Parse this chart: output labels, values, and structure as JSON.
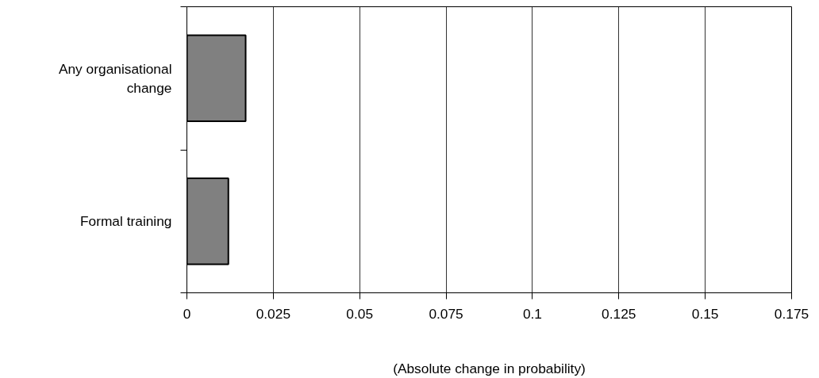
{
  "chart_data": {
    "type": "bar",
    "orientation": "horizontal",
    "categories": [
      "Any organisational change",
      "Formal training"
    ],
    "values": [
      0.017,
      0.012
    ],
    "color": "#808080",
    "xlim": [
      0,
      0.175
    ],
    "xticks": [
      0,
      0.025,
      0.05,
      0.075,
      0.1,
      0.125,
      0.15,
      0.175
    ],
    "xlabel": "(Absolute change in probability)",
    "grid": "x"
  }
}
